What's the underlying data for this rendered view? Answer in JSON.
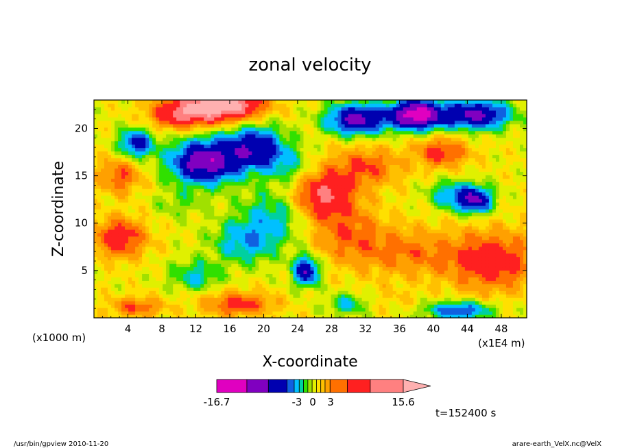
{
  "chart_data": {
    "type": "heatmap",
    "title": "zonal velocity",
    "xlabel": "X-coordinate",
    "ylabel": "Z-coordinate",
    "x_unit": "(x1E4 m)",
    "y_unit": "(x1000 m)",
    "x_ticks": [
      "4",
      "8",
      "12",
      "16",
      "20",
      "24",
      "28",
      "32",
      "36",
      "40",
      "44",
      "48"
    ],
    "y_ticks": [
      "5",
      "10",
      "15",
      "20"
    ],
    "xlim": [
      0,
      51
    ],
    "ylim": [
      0,
      23
    ],
    "colorbar": {
      "min_label": "-16.7",
      "max_label": "15.6",
      "mid_labels": [
        "-3",
        "0",
        "3"
      ],
      "levels": [
        -16.7,
        -12,
        -9,
        -6,
        -4.5,
        -3,
        -2,
        -1,
        0,
        1,
        2,
        3,
        4.5,
        6,
        9,
        12,
        15.6
      ],
      "colors": [
        "#e000c0",
        "#8000c0",
        "#0000b0",
        "#1060e0",
        "#00c0ff",
        "#00d0a0",
        "#30e000",
        "#a0e000",
        "#e0f000",
        "#ffe000",
        "#ffc000",
        "#ffa000",
        "#ff7000",
        "#ff2020",
        "#ff8080",
        "#ffb0b0"
      ]
    },
    "field": {
      "comment_values": "values sampled in data units (m/s) on a coarse grid, x from 0 to 51, z from 0 to 23",
      "blobs": [
        {
          "x": 15,
          "z": 22.5,
          "sx": 4.5,
          "sz": 1.6,
          "v": 14
        },
        {
          "x": 10,
          "z": 21.5,
          "sx": 3.5,
          "sz": 1.5,
          "v": 7
        },
        {
          "x": 13,
          "z": 16.5,
          "sx": 4,
          "sz": 2.3,
          "v": -12
        },
        {
          "x": 19,
          "z": 18,
          "sx": 3.5,
          "sz": 2.3,
          "v": -9
        },
        {
          "x": 5,
          "z": 18.5,
          "sx": 2,
          "sz": 1.5,
          "v": -8
        },
        {
          "x": 31,
          "z": 21,
          "sx": 3.5,
          "sz": 1.6,
          "v": -11
        },
        {
          "x": 38,
          "z": 21.5,
          "sx": 3,
          "sz": 1.5,
          "v": -15
        },
        {
          "x": 45,
          "z": 21.5,
          "sx": 4,
          "sz": 1.5,
          "v": -11
        },
        {
          "x": 27,
          "z": 13,
          "sx": 3.5,
          "sz": 2.5,
          "v": 8
        },
        {
          "x": 32,
          "z": 16,
          "sx": 4,
          "sz": 2,
          "v": 5
        },
        {
          "x": 42,
          "z": 13,
          "sx": 2.5,
          "sz": 1.5,
          "v": -5
        },
        {
          "x": 45,
          "z": 12.5,
          "sx": 2,
          "sz": 1.4,
          "v": -10
        },
        {
          "x": 47,
          "z": 6,
          "sx": 5,
          "sz": 3,
          "v": 7
        },
        {
          "x": 37,
          "z": 7,
          "sx": 6,
          "sz": 2.5,
          "v": 4
        },
        {
          "x": 41,
          "z": 17.5,
          "sx": 3,
          "sz": 1.5,
          "v": 6
        },
        {
          "x": 3,
          "z": 8.5,
          "sx": 3,
          "sz": 2,
          "v": 7
        },
        {
          "x": 18,
          "z": 8,
          "sx": 4,
          "sz": 2.2,
          "v": -5
        },
        {
          "x": 21,
          "z": 11,
          "sx": 4,
          "sz": 2.5,
          "v": -4
        },
        {
          "x": 25,
          "z": 5,
          "sx": 1.5,
          "sz": 1.5,
          "v": -10
        },
        {
          "x": 12,
          "z": 4.5,
          "sx": 3,
          "sz": 1.6,
          "v": -4
        },
        {
          "x": 17,
          "z": 1.5,
          "sx": 4,
          "sz": 1.2,
          "v": 6
        },
        {
          "x": 5,
          "z": 1.2,
          "sx": 3,
          "sz": 1,
          "v": 5
        },
        {
          "x": 30,
          "z": 1.5,
          "sx": 2.5,
          "sz": 1.2,
          "v": -4
        },
        {
          "x": 43,
          "z": 0.8,
          "sx": 4,
          "sz": 1,
          "v": -7
        },
        {
          "x": 3,
          "z": 15,
          "sx": 2.5,
          "sz": 1.8,
          "v": 5
        },
        {
          "x": 10,
          "z": 12,
          "sx": 3,
          "sz": 1.5,
          "v": -2
        },
        {
          "x": 35,
          "z": 2,
          "sx": 4,
          "sz": 1.5,
          "v": 1
        },
        {
          "x": 30,
          "z": 9,
          "sx": 4,
          "sz": 3,
          "v": 4
        },
        {
          "x": 23,
          "z": 16,
          "sx": 3,
          "sz": 2,
          "v": -3
        }
      ],
      "background": 1
    }
  },
  "footer": {
    "time": "t=152400 s",
    "program": "/usr/bin/gpview   2010-11-20",
    "source": "arare-earth_VelX.nc@VelX"
  }
}
